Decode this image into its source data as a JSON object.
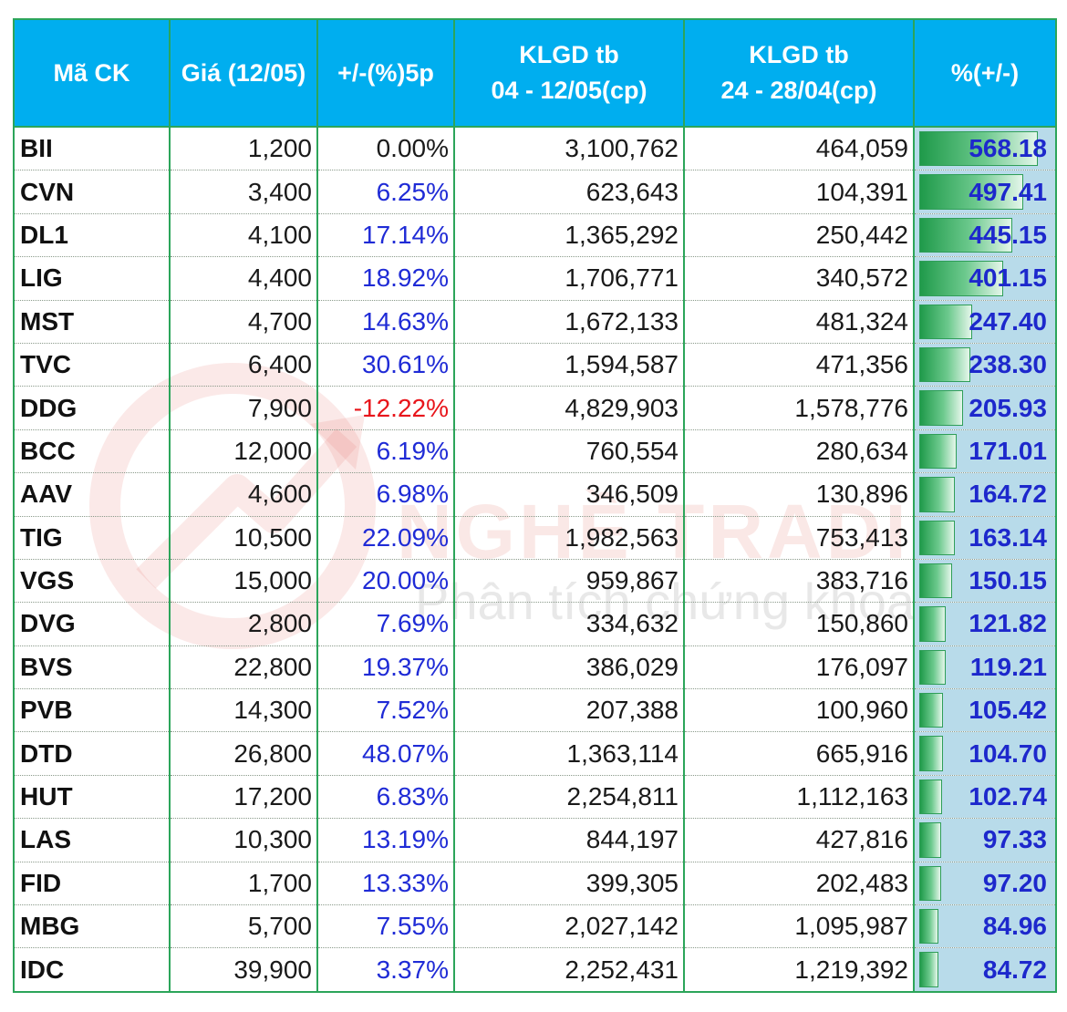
{
  "watermark": {
    "brand": "NGHỀ TRADING",
    "subtitle": "Phân tích chứng khoán"
  },
  "colors": {
    "header_bg": "#00aeef",
    "grid": "#2ca55a",
    "positive": "#1f2bd6",
    "negative": "#e8151b",
    "bar": "#1f9a4a",
    "pct_bg": "#b8dbea"
  },
  "table": {
    "headers": [
      {
        "line1": "Mã CK",
        "line2": ""
      },
      {
        "line1": "Giá (12/05)",
        "line2": ""
      },
      {
        "line1": "+/-(%)5p",
        "line2": ""
      },
      {
        "line1": "KLGD tb",
        "line2": "04 - 12/05(cp)"
      },
      {
        "line1": "KLGD tb",
        "line2": "24 - 28/04(cp)"
      },
      {
        "line1": "%(+/-)",
        "line2": ""
      }
    ]
  },
  "chart_data": {
    "type": "table",
    "columns": [
      "Mã CK",
      "Giá (12/05)",
      "+/-(%)5p",
      "KLGD tb 04 - 12/05(cp)",
      "KLGD tb 24 - 28/04(cp)",
      "%(+/-)"
    ],
    "rows": [
      {
        "code": "BII",
        "price": "1,200",
        "change": "0.00%",
        "vol_current": "3,100,762",
        "vol_prev": "464,059",
        "pct": "568.18"
      },
      {
        "code": "CVN",
        "price": "3,400",
        "change": "6.25%",
        "vol_current": "623,643",
        "vol_prev": "104,391",
        "pct": "497.41"
      },
      {
        "code": "DL1",
        "price": "4,100",
        "change": "17.14%",
        "vol_current": "1,365,292",
        "vol_prev": "250,442",
        "pct": "445.15"
      },
      {
        "code": "LIG",
        "price": "4,400",
        "change": "18.92%",
        "vol_current": "1,706,771",
        "vol_prev": "340,572",
        "pct": "401.15"
      },
      {
        "code": "MST",
        "price": "4,700",
        "change": "14.63%",
        "vol_current": "1,672,133",
        "vol_prev": "481,324",
        "pct": "247.40"
      },
      {
        "code": "TVC",
        "price": "6,400",
        "change": "30.61%",
        "vol_current": "1,594,587",
        "vol_prev": "471,356",
        "pct": "238.30"
      },
      {
        "code": "DDG",
        "price": "7,900",
        "change": "-12.22%",
        "vol_current": "4,829,903",
        "vol_prev": "1,578,776",
        "pct": "205.93"
      },
      {
        "code": "BCC",
        "price": "12,000",
        "change": "6.19%",
        "vol_current": "760,554",
        "vol_prev": "280,634",
        "pct": "171.01"
      },
      {
        "code": "AAV",
        "price": "4,600",
        "change": "6.98%",
        "vol_current": "346,509",
        "vol_prev": "130,896",
        "pct": "164.72"
      },
      {
        "code": "TIG",
        "price": "10,500",
        "change": "22.09%",
        "vol_current": "1,982,563",
        "vol_prev": "753,413",
        "pct": "163.14"
      },
      {
        "code": "VGS",
        "price": "15,000",
        "change": "20.00%",
        "vol_current": "959,867",
        "vol_prev": "383,716",
        "pct": "150.15"
      },
      {
        "code": "DVG",
        "price": "2,800",
        "change": "7.69%",
        "vol_current": "334,632",
        "vol_prev": "150,860",
        "pct": "121.82"
      },
      {
        "code": "BVS",
        "price": "22,800",
        "change": "19.37%",
        "vol_current": "386,029",
        "vol_prev": "176,097",
        "pct": "119.21"
      },
      {
        "code": "PVB",
        "price": "14,300",
        "change": "7.52%",
        "vol_current": "207,388",
        "vol_prev": "100,960",
        "pct": "105.42"
      },
      {
        "code": "DTD",
        "price": "26,800",
        "change": "48.07%",
        "vol_current": "1,363,114",
        "vol_prev": "665,916",
        "pct": "104.70"
      },
      {
        "code": "HUT",
        "price": "17,200",
        "change": "6.83%",
        "vol_current": "2,254,811",
        "vol_prev": "1,112,163",
        "pct": "102.74"
      },
      {
        "code": "LAS",
        "price": "10,300",
        "change": "13.19%",
        "vol_current": "844,197",
        "vol_prev": "427,816",
        "pct": "97.33"
      },
      {
        "code": "FID",
        "price": "1,700",
        "change": "13.33%",
        "vol_current": "399,305",
        "vol_prev": "202,483",
        "pct": "97.20"
      },
      {
        "code": "MBG",
        "price": "5,700",
        "change": "7.55%",
        "vol_current": "2,027,142",
        "vol_prev": "1,095,987",
        "pct": "84.96"
      },
      {
        "code": "IDC",
        "price": "39,900",
        "change": "3.37%",
        "vol_current": "2,252,431",
        "vol_prev": "1,219,392",
        "pct": "84.72"
      }
    ]
  }
}
